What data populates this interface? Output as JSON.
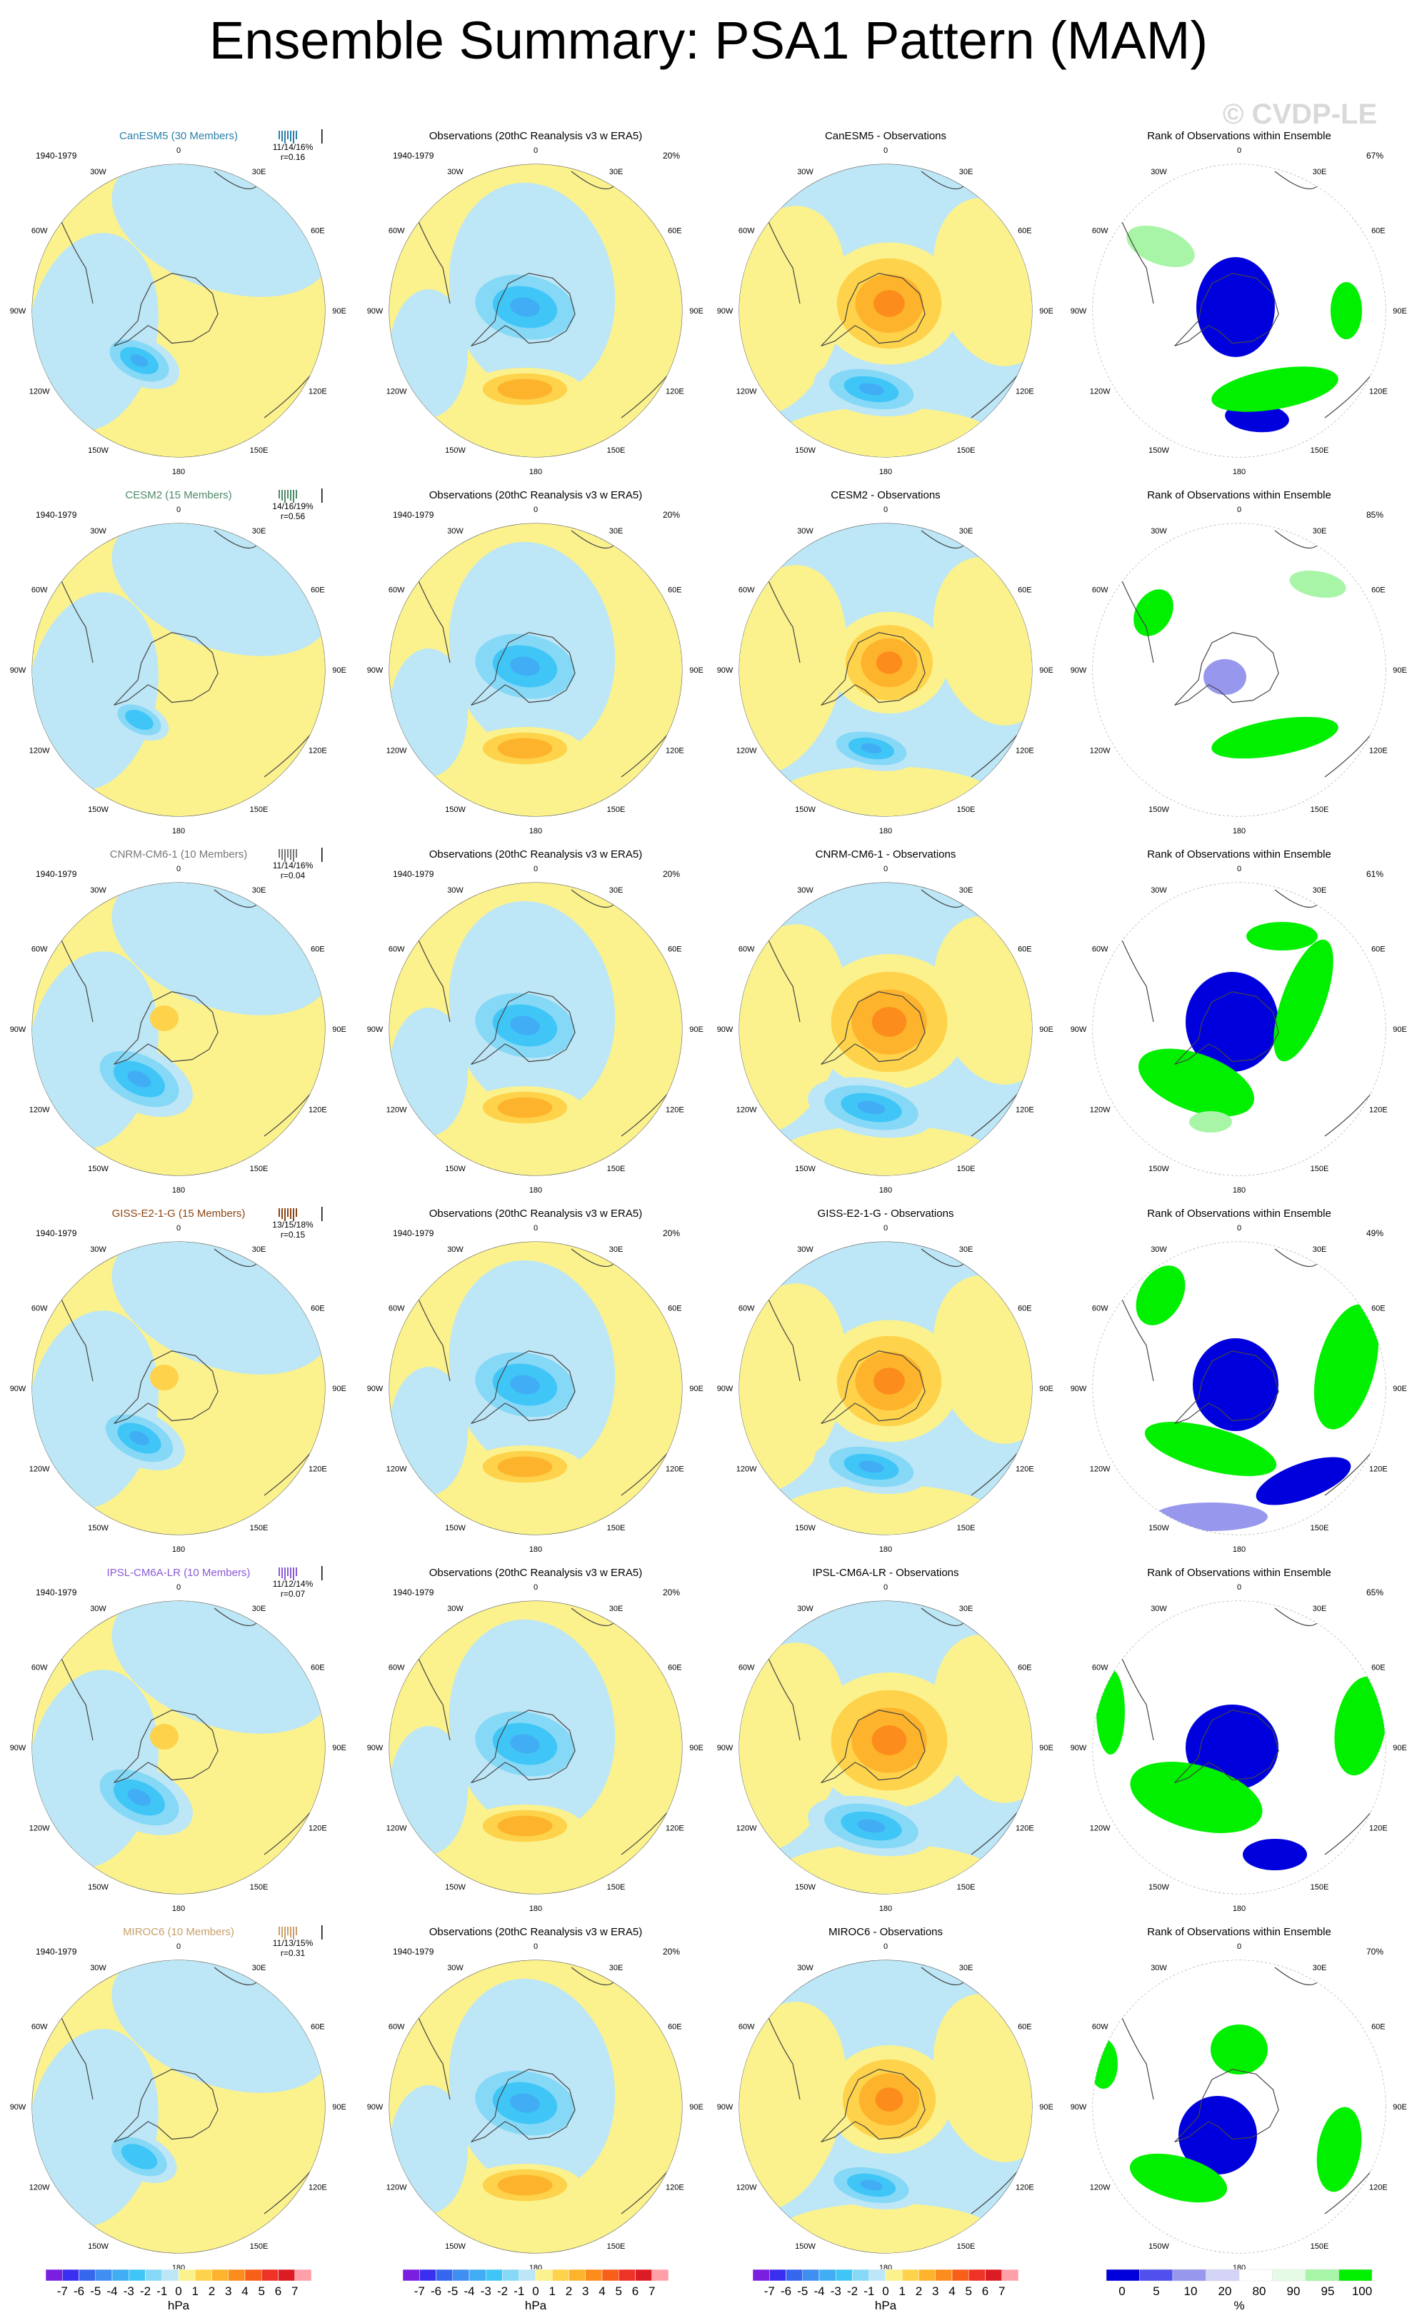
{
  "title": "Ensemble Summary: PSA1 Pattern (MAM)",
  "watermark": "© CVDP-LE",
  "colors": {
    "cbar": [
      "#7a1fe0",
      "#3a2ff0",
      "#3566ee",
      "#3f8ff2",
      "#41adf4",
      "#3fc6f6",
      "#86d8f7",
      "#bde6f6",
      "#fbf28d",
      "#fed24a",
      "#fdb32b",
      "#fc8c1c",
      "#f85f18",
      "#ee3225",
      "#dd1b24",
      "#ff9fa7"
    ],
    "rank": [
      "#0000dd",
      "#5050ee",
      "#9797ee",
      "#d4d4f7",
      "#ffffff",
      "#e6fbe6",
      "#a8f5a8",
      "#00f000"
    ]
  },
  "chart_data": {
    "type": "polar-contour-panels",
    "labels": {
      "period": "1940-1979",
      "obs_title": "Observations (20thC Reanalysis v3 w ERA5)",
      "rank_title": "Rank of Observations within Ensemble",
      "obs_pct": "20%",
      "lon_labels": [
        "0",
        "30E",
        "60E",
        "90E",
        "120E",
        "150E",
        "180",
        "150W",
        "120W",
        "90W",
        "60W",
        "30W"
      ]
    },
    "rows": [
      {
        "model": "CanESM5 (30 Members)",
        "model_color": "#2a7fa8",
        "stats": "11/14/16%",
        "r": "r=0.16",
        "diff_title": "CanESM5 - Observations",
        "rank_pct": "67%"
      },
      {
        "model": "CESM2 (15 Members)",
        "model_color": "#4d8a6a",
        "stats": "14/16/19%",
        "r": "r=0.56",
        "diff_title": "CESM2 - Observations",
        "rank_pct": "85%"
      },
      {
        "model": "CNRM-CM6-1 (10 Members)",
        "model_color": "#777777",
        "stats": "11/14/16%",
        "r": "r=0.04",
        "diff_title": "CNRM-CM6-1 - Observations",
        "rank_pct": "61%"
      },
      {
        "model": "GISS-E2-1-G (15 Members)",
        "model_color": "#8b4513",
        "stats": "13/15/18%",
        "r": "r=0.15",
        "diff_title": "GISS-E2-1-G - Observations",
        "rank_pct": "49%"
      },
      {
        "model": "IPSL-CM6A-LR (10 Members)",
        "model_color": "#8a5bd6",
        "stats": "11/12/14%",
        "r": "r=0.07",
        "diff_title": "IPSL-CM6A-LR - Observations",
        "rank_pct": "65%"
      },
      {
        "model": "MIROC6 (10 Members)",
        "model_color": "#c8a06a",
        "stats": "11/13/15%",
        "r": "r=0.31",
        "diff_title": "MIROC6 - Observations",
        "rank_pct": "70%"
      }
    ],
    "colorbar": {
      "ticks": [
        "-7",
        "-6",
        "-5",
        "-4",
        "-3",
        "-2",
        "-1",
        "0",
        "1",
        "2",
        "3",
        "4",
        "5",
        "6",
        "7"
      ],
      "unit": "hPa"
    },
    "rank_colorbar": {
      "ticks": [
        "0",
        "5",
        "10",
        "20",
        "80",
        "90",
        "95",
        "100"
      ],
      "unit": "%"
    }
  }
}
